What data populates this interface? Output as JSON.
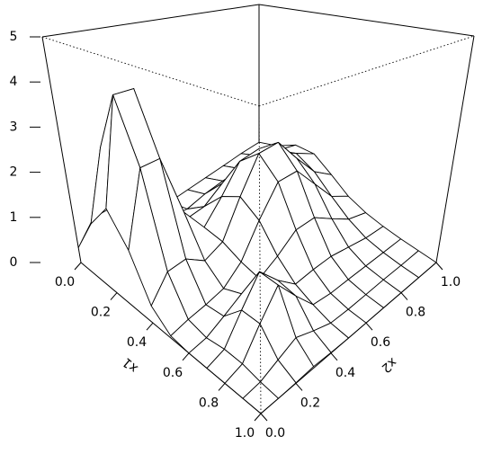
{
  "chart_data": {
    "type": "surface",
    "xlabel": "x1",
    "ylabel": "x2",
    "x": [
      0,
      0.1,
      0.2,
      0.3,
      0.4,
      0.5,
      0.6,
      0.7,
      0.8,
      0.9,
      1
    ],
    "y": [
      0,
      0.1,
      0.2,
      0.3,
      0.4,
      0.5,
      0.6,
      0.7,
      0.8,
      0.9,
      1
    ],
    "z": [
      [
        0.33,
        0.76,
        0.76,
        0.34,
        0.08,
        0.05,
        0.06,
        0.07,
        0.08,
        0.1,
        0.09
      ],
      [
        1.15,
        2.62,
        2.63,
        1.17,
        0.3,
        0.21,
        0.3,
        0.34,
        0.36,
        0.41,
        0.36
      ],
      [
        1.74,
        3.97,
        3.98,
        1.8,
        0.57,
        0.6,
        0.9,
        0.98,
        0.91,
        0.91,
        0.74
      ],
      [
        1.15,
        2.63,
        2.65,
        1.27,
        0.68,
        1.14,
        1.75,
        1.82,
        1.45,
        1.13,
        0.79
      ],
      [
        0.33,
        0.76,
        0.78,
        0.49,
        0.64,
        1.4,
        2.18,
        2.22,
        1.56,
        0.91,
        0.49
      ],
      [
        0.04,
        0.1,
        0.13,
        0.19,
        0.48,
        1.12,
        1.74,
        1.75,
        1.16,
        0.54,
        0.2
      ],
      [
        0,
        0.03,
        0.18,
        0.36,
        0.4,
        0.6,
        0.9,
        0.9,
        0.58,
        0.25,
        0.07
      ],
      [
        0,
        0.09,
        0.56,
        1.05,
        0.63,
        0.28,
        0.3,
        0.29,
        0.19,
        0.08,
        0.02
      ],
      [
        0,
        0.09,
        0.56,
        1.03,
        0.57,
        0.13,
        0.07,
        0.06,
        0.04,
        0.02,
        0
      ],
      [
        0,
        0.03,
        0.16,
        0.3,
        0.16,
        0.03,
        0.01,
        0.01,
        0.01,
        0,
        0
      ],
      [
        0,
        0,
        0.01,
        0.03,
        0.01,
        0,
        0,
        0,
        0,
        0,
        0
      ]
    ],
    "xlim": [
      0,
      1
    ],
    "ylim": [
      0,
      1
    ],
    "zlim": [
      0,
      5
    ],
    "xticks": [
      {
        "value": 0,
        "label": "0.0"
      },
      {
        "value": 0.2,
        "label": "0.2"
      },
      {
        "value": 0.4,
        "label": "0.4"
      },
      {
        "value": 0.6,
        "label": "0.6"
      },
      {
        "value": 0.8,
        "label": "0.8"
      },
      {
        "value": 1,
        "label": "1.0"
      }
    ],
    "yticks": [
      {
        "value": 0,
        "label": "0.0"
      },
      {
        "value": 0.2,
        "label": "0.2"
      },
      {
        "value": 0.4,
        "label": "0.4"
      },
      {
        "value": 0.6,
        "label": "0.6"
      },
      {
        "value": 0.8,
        "label": "0.8"
      },
      {
        "value": 1,
        "label": "1.0"
      }
    ],
    "zticks": [
      0,
      1,
      2,
      3,
      4,
      5
    ]
  }
}
